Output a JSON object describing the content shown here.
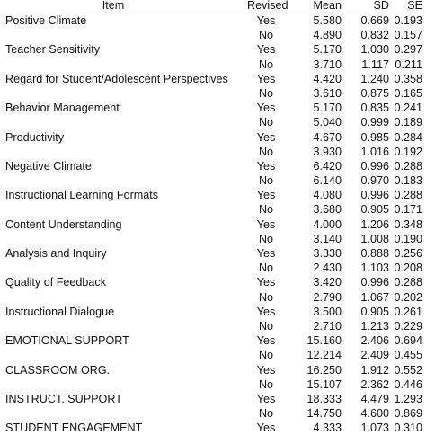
{
  "table": {
    "headers": {
      "item": "Item",
      "revised": "Revised",
      "mean": "Mean",
      "sd": "SD",
      "se": "SE"
    },
    "groups": [
      {
        "item": "Positive Climate",
        "rows": [
          {
            "revised": "Yes",
            "mean": "5.580",
            "sd": "0.669",
            "se": "0.193"
          },
          {
            "revised": "No",
            "mean": "4.890",
            "sd": "0.832",
            "se": "0.157"
          }
        ]
      },
      {
        "item": "Teacher Sensitivity",
        "rows": [
          {
            "revised": "Yes",
            "mean": "5.170",
            "sd": "1.030",
            "se": "0.297"
          },
          {
            "revised": "No",
            "mean": "3.710",
            "sd": "1.117",
            "se": "0.211"
          }
        ]
      },
      {
        "item": "Regard for Student/Adolescent Perspectives",
        "rows": [
          {
            "revised": "Yes",
            "mean": "4.420",
            "sd": "1.240",
            "se": "0.358"
          },
          {
            "revised": "No",
            "mean": "3.610",
            "sd": "0.875",
            "se": "0.165"
          }
        ]
      },
      {
        "item": "Behavior Management",
        "rows": [
          {
            "revised": "Yes",
            "mean": "5.170",
            "sd": "0.835",
            "se": "0.241"
          },
          {
            "revised": "No",
            "mean": "5.040",
            "sd": "0.999",
            "se": "0.189"
          }
        ]
      },
      {
        "item": "Productivity",
        "rows": [
          {
            "revised": "Yes",
            "mean": "4.670",
            "sd": "0.985",
            "se": "0.284"
          },
          {
            "revised": "No",
            "mean": "3.930",
            "sd": "1.016",
            "se": "0.192"
          }
        ]
      },
      {
        "item": "Negative Climate",
        "rows": [
          {
            "revised": "Yes",
            "mean": "6.420",
            "sd": "0.996",
            "se": "0.288"
          },
          {
            "revised": "No",
            "mean": "6.140",
            "sd": "0.970",
            "se": "0.183"
          }
        ]
      },
      {
        "item": "Instructional Learning Formats",
        "rows": [
          {
            "revised": "Yes",
            "mean": "4.080",
            "sd": "0.996",
            "se": "0.288"
          },
          {
            "revised": "No",
            "mean": "3.680",
            "sd": "0.905",
            "se": "0.171"
          }
        ]
      },
      {
        "item": "Content Understanding",
        "rows": [
          {
            "revised": "Yes",
            "mean": "4.000",
            "sd": "1.206",
            "se": "0.348"
          },
          {
            "revised": "No",
            "mean": "3.140",
            "sd": "1.008",
            "se": "0.190"
          }
        ]
      },
      {
        "item": "Analysis and Inquiry",
        "rows": [
          {
            "revised": "Yes",
            "mean": "3.330",
            "sd": "0.888",
            "se": "0.256"
          },
          {
            "revised": "No",
            "mean": "2.430",
            "sd": "1.103",
            "se": "0.208"
          }
        ]
      },
      {
        "item": "Quality of Feedback",
        "rows": [
          {
            "revised": "Yes",
            "mean": "3.420",
            "sd": "0.996",
            "se": "0.288"
          },
          {
            "revised": "No",
            "mean": "2.790",
            "sd": "1.067",
            "se": "0.202"
          }
        ]
      },
      {
        "item": "Instructional Dialogue",
        "rows": [
          {
            "revised": "Yes",
            "mean": "3.500",
            "sd": "0.905",
            "se": "0.261"
          },
          {
            "revised": "No",
            "mean": "2.710",
            "sd": "1.213",
            "se": "0.229"
          }
        ]
      },
      {
        "item": "EMOTIONAL SUPPORT",
        "rows": [
          {
            "revised": "Yes",
            "mean": "15.160",
            "sd": "2.406",
            "se": "0.694"
          },
          {
            "revised": "No",
            "mean": "12.214",
            "sd": "2.409",
            "se": "0.455"
          }
        ]
      },
      {
        "item": "CLASSROOM ORG.",
        "rows": [
          {
            "revised": "Yes",
            "mean": "16.250",
            "sd": "1.912",
            "se": "0.552"
          },
          {
            "revised": "No",
            "mean": "15.107",
            "sd": "2.362",
            "se": "0.446"
          }
        ]
      },
      {
        "item": "INSTRUCT. SUPPORT",
        "rows": [
          {
            "revised": "Yes",
            "mean": "18.333",
            "sd": "4.479",
            "se": "1.293"
          },
          {
            "revised": "No",
            "mean": "14.750",
            "sd": "4.600",
            "se": "0.869"
          }
        ]
      },
      {
        "item": "STUDENT ENGAGEMENT",
        "rows": [
          {
            "revised": "Yes",
            "mean": "4.333",
            "sd": "1.073",
            "se": "0.310"
          }
        ]
      }
    ]
  }
}
